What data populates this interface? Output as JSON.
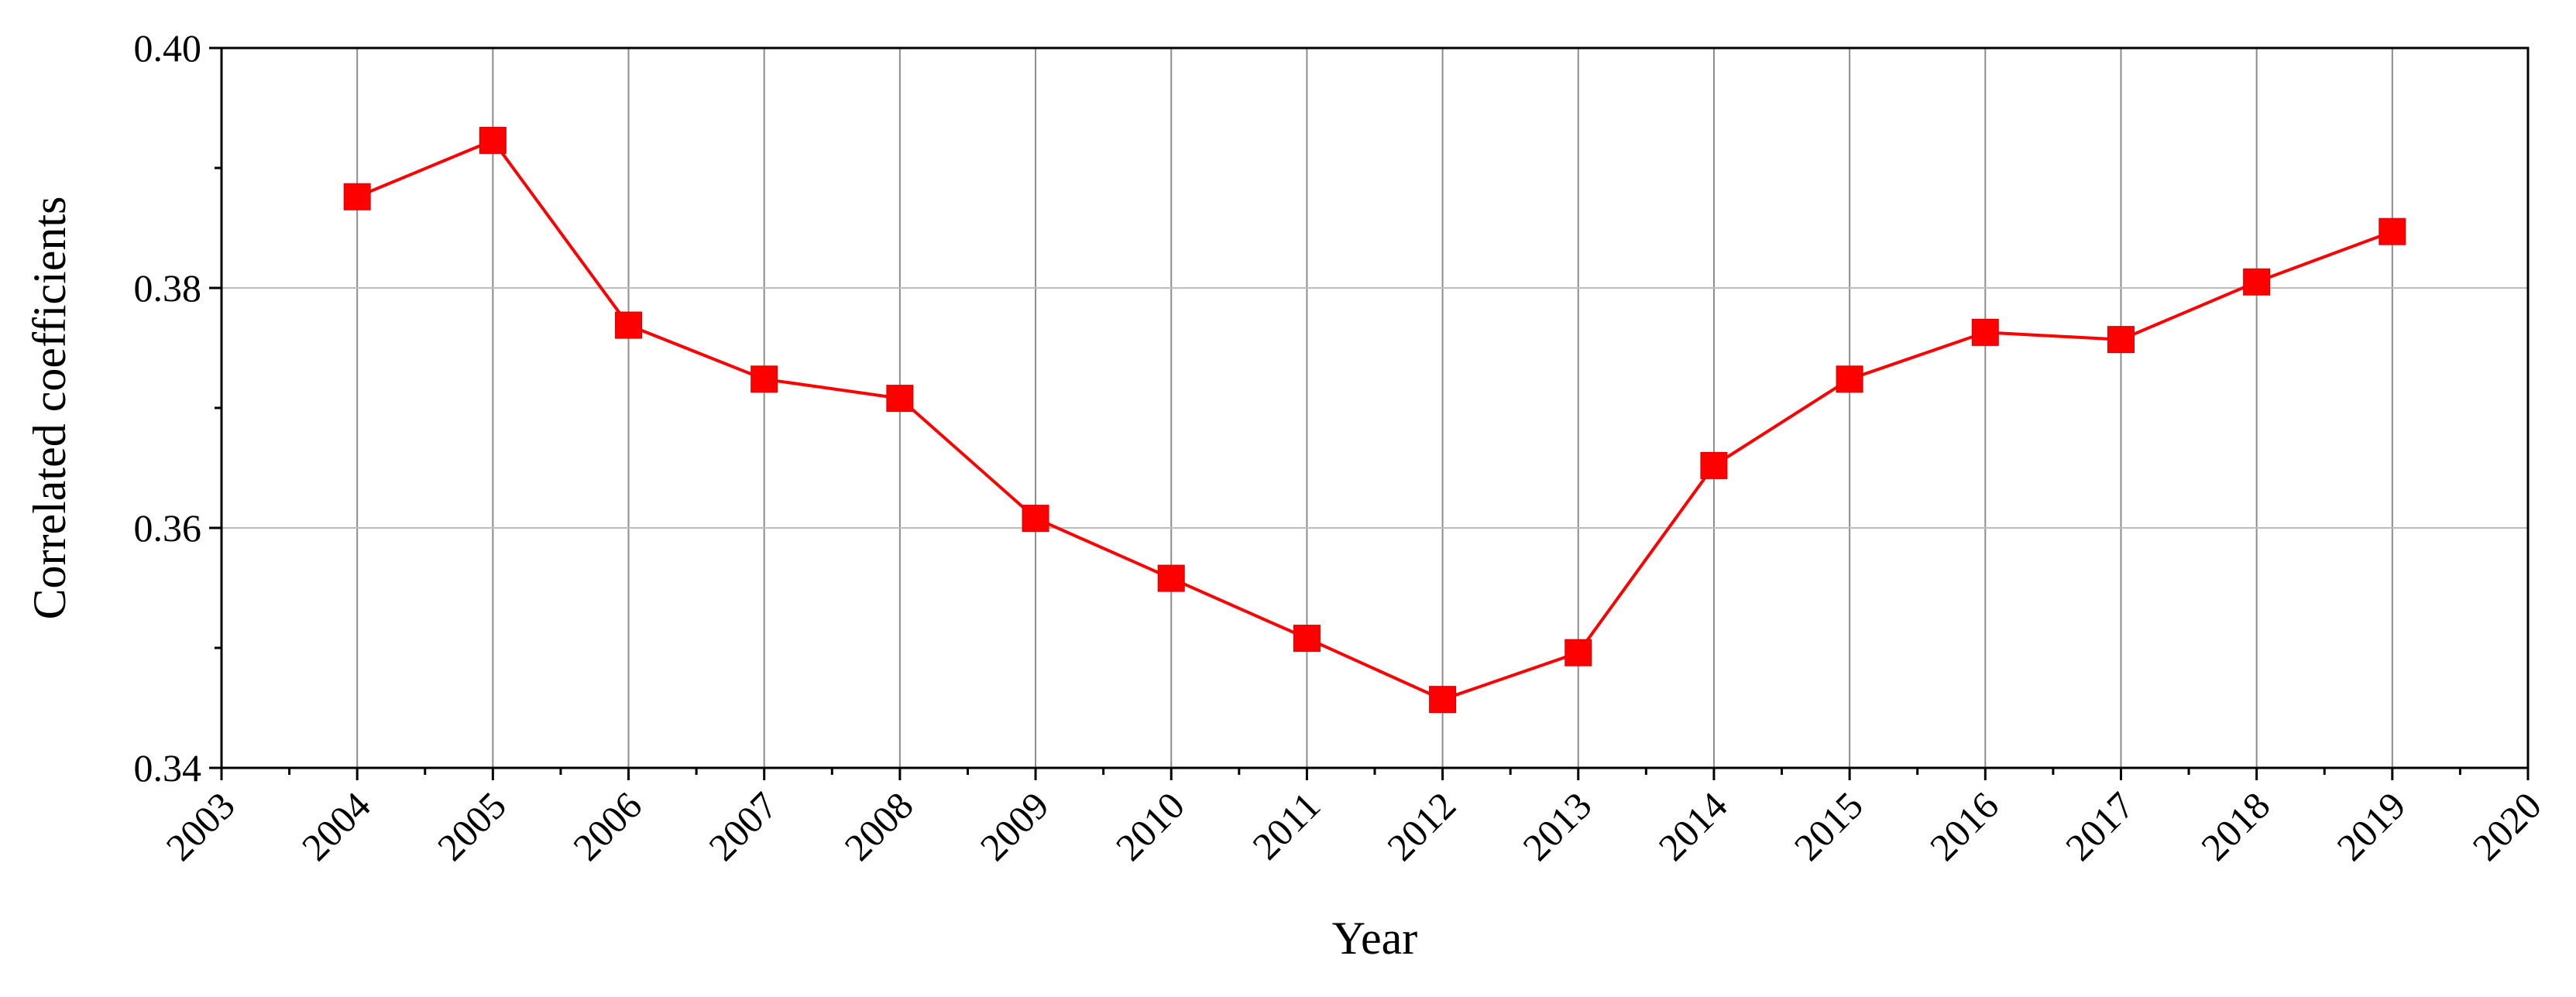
{
  "chart_data": {
    "type": "line",
    "xlabel": "Year",
    "ylabel": "Correlated coefficients",
    "ylim": [
      0.34,
      0.4
    ],
    "y_ticks": [
      "0.34",
      "0.36",
      "0.38",
      "0.40"
    ],
    "y_tick_values": [
      0.34,
      0.36,
      0.38,
      0.4
    ],
    "x_ticks": [
      "2003",
      "2004",
      "2005",
      "2006",
      "2007",
      "2008",
      "2009",
      "2010",
      "2011",
      "2012",
      "2013",
      "2014",
      "2015",
      "2016",
      "2017",
      "2018",
      "2019",
      "2020"
    ],
    "xlim": [
      2003,
      2020
    ],
    "grid": true,
    "series": [
      {
        "color": "#ff0000",
        "marker": "square",
        "x": [
          2004,
          2005,
          2006,
          2007,
          2008,
          2009,
          2010,
          2011,
          2012,
          2013,
          2014,
          2015,
          2016,
          2017,
          2018,
          2019
        ],
        "values": [
          0.3876,
          0.3923,
          0.3769,
          0.3724,
          0.3708,
          0.3608,
          0.3558,
          0.3508,
          0.3457,
          0.3496,
          0.3652,
          0.3724,
          0.3763,
          0.3757,
          0.3805,
          0.3847
        ]
      }
    ]
  }
}
